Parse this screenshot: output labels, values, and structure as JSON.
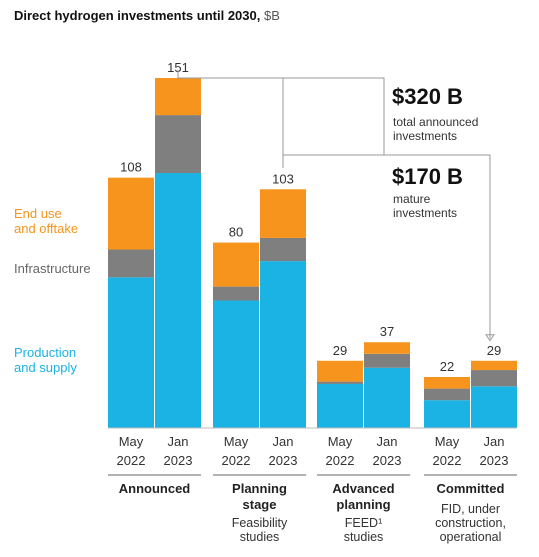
{
  "header": {
    "title_bold": "Direct hydrogen investments until 2030,",
    "title_unit": "$B"
  },
  "colors": {
    "production": "#1ab3e3",
    "infrastructure": "#7f7f7f",
    "enduse": "#f7941d",
    "line": "#999999"
  },
  "legend": {
    "enduse": [
      "End use",
      "and offtake"
    ],
    "infrastructure": [
      "Infrastructure"
    ],
    "production": [
      "Production",
      "and supply"
    ]
  },
  "callouts": {
    "total": {
      "value": "$320 B",
      "text": [
        "total announced",
        "investments"
      ]
    },
    "mature": {
      "value": "$170 B",
      "text": [
        "mature",
        "investments"
      ]
    }
  },
  "chart_data": {
    "type": "bar",
    "stacked": true,
    "title": "Direct hydrogen investments until 2030, $B",
    "bar_labels": [
      [
        "May",
        "2022"
      ],
      [
        "Jan",
        "2023"
      ]
    ],
    "groups": [
      {
        "name": [
          "Announced"
        ],
        "sub": []
      },
      {
        "name": [
          "Planning",
          "stage"
        ],
        "sub": [
          "Feasibility",
          "studies"
        ]
      },
      {
        "name": [
          "Advanced",
          "planning"
        ],
        "sub": [
          "FEED¹",
          "studies"
        ]
      },
      {
        "name": [
          "Committed"
        ],
        "sub": [
          "FID, under",
          "construction,",
          "operational"
        ]
      }
    ],
    "series": [
      {
        "name": "Production and supply",
        "key": "production",
        "values": [
          [
            65,
            110
          ],
          [
            55,
            72
          ],
          [
            19,
            26
          ],
          [
            12,
            18
          ]
        ]
      },
      {
        "name": "Infrastructure",
        "key": "infrastructure",
        "values": [
          [
            12,
            25
          ],
          [
            6,
            10
          ],
          [
            1,
            6
          ],
          [
            5,
            7
          ]
        ]
      },
      {
        "name": "End use and offtake",
        "key": "enduse",
        "values": [
          [
            31,
            16
          ],
          [
            19,
            21
          ],
          [
            9,
            5
          ],
          [
            5,
            4
          ]
        ]
      }
    ],
    "totals": [
      [
        108,
        151
      ],
      [
        80,
        103
      ],
      [
        29,
        37
      ],
      [
        22,
        29
      ]
    ],
    "ylim": [
      0,
      151
    ]
  }
}
